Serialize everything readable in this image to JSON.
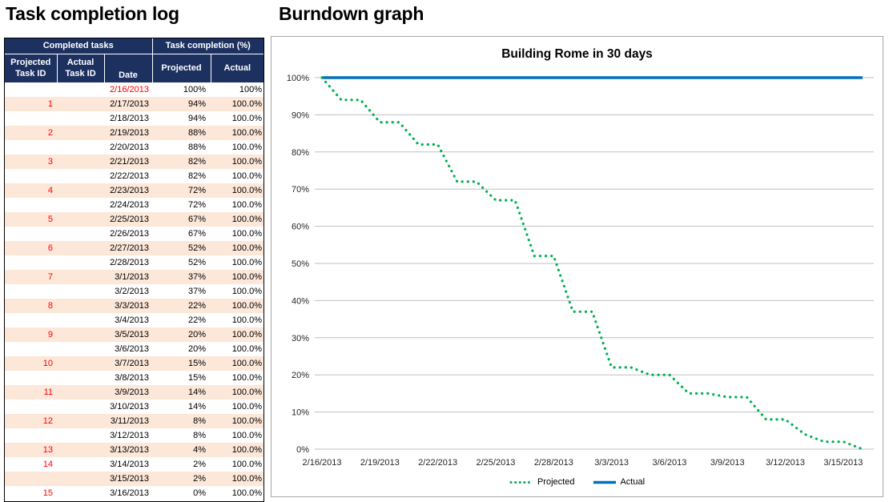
{
  "left": {
    "title": "Task completion log",
    "table": {
      "group_headers": [
        "Completed tasks",
        "Task completion (%)"
      ],
      "columns": [
        {
          "lines": [
            "Projected",
            "Task ID"
          ]
        },
        {
          "lines": [
            "Actual",
            "Task ID"
          ]
        },
        {
          "lines": [
            "Date"
          ]
        },
        {
          "label": "Projected"
        },
        {
          "label": "Actual"
        }
      ],
      "colors": {
        "header_bg": "#1d3160",
        "header_text": "#ffffff",
        "stripe": "#fce7d9",
        "accent_red": "#ff0000",
        "border": "#000000"
      },
      "rows": [
        {
          "projected_task_id": "",
          "actual_task_id": "",
          "date": "2/16/2013",
          "projected": "100%",
          "actual": "100%",
          "highlight_date": true
        },
        {
          "projected_task_id": "1",
          "actual_task_id": "",
          "date": "2/17/2013",
          "projected": "94%",
          "actual": "100.0%"
        },
        {
          "projected_task_id": "",
          "actual_task_id": "",
          "date": "2/18/2013",
          "projected": "94%",
          "actual": "100.0%"
        },
        {
          "projected_task_id": "2",
          "actual_task_id": "",
          "date": "2/19/2013",
          "projected": "88%",
          "actual": "100.0%"
        },
        {
          "projected_task_id": "",
          "actual_task_id": "",
          "date": "2/20/2013",
          "projected": "88%",
          "actual": "100.0%"
        },
        {
          "projected_task_id": "3",
          "actual_task_id": "",
          "date": "2/21/2013",
          "projected": "82%",
          "actual": "100.0%"
        },
        {
          "projected_task_id": "",
          "actual_task_id": "",
          "date": "2/22/2013",
          "projected": "82%",
          "actual": "100.0%"
        },
        {
          "projected_task_id": "4",
          "actual_task_id": "",
          "date": "2/23/2013",
          "projected": "72%",
          "actual": "100.0%"
        },
        {
          "projected_task_id": "",
          "actual_task_id": "",
          "date": "2/24/2013",
          "projected": "72%",
          "actual": "100.0%"
        },
        {
          "projected_task_id": "5",
          "actual_task_id": "",
          "date": "2/25/2013",
          "projected": "67%",
          "actual": "100.0%"
        },
        {
          "projected_task_id": "",
          "actual_task_id": "",
          "date": "2/26/2013",
          "projected": "67%",
          "actual": "100.0%"
        },
        {
          "projected_task_id": "6",
          "actual_task_id": "",
          "date": "2/27/2013",
          "projected": "52%",
          "actual": "100.0%"
        },
        {
          "projected_task_id": "",
          "actual_task_id": "",
          "date": "2/28/2013",
          "projected": "52%",
          "actual": "100.0%"
        },
        {
          "projected_task_id": "7",
          "actual_task_id": "",
          "date": "3/1/2013",
          "projected": "37%",
          "actual": "100.0%"
        },
        {
          "projected_task_id": "",
          "actual_task_id": "",
          "date": "3/2/2013",
          "projected": "37%",
          "actual": "100.0%"
        },
        {
          "projected_task_id": "8",
          "actual_task_id": "",
          "date": "3/3/2013",
          "projected": "22%",
          "actual": "100.0%"
        },
        {
          "projected_task_id": "",
          "actual_task_id": "",
          "date": "3/4/2013",
          "projected": "22%",
          "actual": "100.0%"
        },
        {
          "projected_task_id": "9",
          "actual_task_id": "",
          "date": "3/5/2013",
          "projected": "20%",
          "actual": "100.0%"
        },
        {
          "projected_task_id": "",
          "actual_task_id": "",
          "date": "3/6/2013",
          "projected": "20%",
          "actual": "100.0%"
        },
        {
          "projected_task_id": "10",
          "actual_task_id": "",
          "date": "3/7/2013",
          "projected": "15%",
          "actual": "100.0%"
        },
        {
          "projected_task_id": "",
          "actual_task_id": "",
          "date": "3/8/2013",
          "projected": "15%",
          "actual": "100.0%"
        },
        {
          "projected_task_id": "11",
          "actual_task_id": "",
          "date": "3/9/2013",
          "projected": "14%",
          "actual": "100.0%"
        },
        {
          "projected_task_id": "",
          "actual_task_id": "",
          "date": "3/10/2013",
          "projected": "14%",
          "actual": "100.0%"
        },
        {
          "projected_task_id": "12",
          "actual_task_id": "",
          "date": "3/11/2013",
          "projected": "8%",
          "actual": "100.0%"
        },
        {
          "projected_task_id": "",
          "actual_task_id": "",
          "date": "3/12/2013",
          "projected": "8%",
          "actual": "100.0%"
        },
        {
          "projected_task_id": "13",
          "actual_task_id": "",
          "date": "3/13/2013",
          "projected": "4%",
          "actual": "100.0%"
        },
        {
          "projected_task_id": "14",
          "actual_task_id": "",
          "date": "3/14/2013",
          "projected": "2%",
          "actual": "100.0%"
        },
        {
          "projected_task_id": "",
          "actual_task_id": "",
          "date": "3/15/2013",
          "projected": "2%",
          "actual": "100.0%"
        },
        {
          "projected_task_id": "15",
          "actual_task_id": "",
          "date": "3/16/2013",
          "projected": "0%",
          "actual": "100.0%"
        }
      ]
    }
  },
  "right": {
    "title": "Burndown graph"
  },
  "chart_data": {
    "type": "line",
    "title": "Building Rome in 30 days",
    "xlabel": "",
    "ylabel": "",
    "ylim": [
      0,
      100
    ],
    "grid": true,
    "legend_position": "bottom",
    "x": [
      "2/16/2013",
      "2/17/2013",
      "2/18/2013",
      "2/19/2013",
      "2/20/2013",
      "2/21/2013",
      "2/22/2013",
      "2/23/2013",
      "2/24/2013",
      "2/25/2013",
      "2/26/2013",
      "2/27/2013",
      "2/28/2013",
      "3/1/2013",
      "3/2/2013",
      "3/3/2013",
      "3/4/2013",
      "3/5/2013",
      "3/6/2013",
      "3/7/2013",
      "3/8/2013",
      "3/9/2013",
      "3/10/2013",
      "3/11/2013",
      "3/12/2013",
      "3/13/2013",
      "3/14/2013",
      "3/15/2013",
      "3/16/2013"
    ],
    "x_tick_labels": [
      "2/16/2013",
      "2/19/2013",
      "2/22/2013",
      "2/25/2013",
      "2/28/2013",
      "3/3/2013",
      "3/6/2013",
      "3/9/2013",
      "3/12/2013",
      "3/15/2013"
    ],
    "y_ticks": [
      "0%",
      "10%",
      "20%",
      "30%",
      "40%",
      "50%",
      "60%",
      "70%",
      "80%",
      "90%",
      "100%"
    ],
    "series": [
      {
        "name": "Actual",
        "color": "#0070c0",
        "style": "solid",
        "values": [
          100,
          100,
          100,
          100,
          100,
          100,
          100,
          100,
          100,
          100,
          100,
          100,
          100,
          100,
          100,
          100,
          100,
          100,
          100,
          100,
          100,
          100,
          100,
          100,
          100,
          100,
          100,
          100,
          100
        ]
      },
      {
        "name": "Projected",
        "color": "#00b050",
        "style": "dotted",
        "values": [
          100,
          94,
          94,
          88,
          88,
          82,
          82,
          72,
          72,
          67,
          67,
          52,
          52,
          37,
          37,
          22,
          22,
          20,
          20,
          15,
          15,
          14,
          14,
          8,
          8,
          4,
          2,
          2,
          0
        ]
      }
    ],
    "colors": {
      "gridline": "#bfbfbf",
      "axis_text": "#262626",
      "chart_border": "#a6a6a6"
    }
  }
}
